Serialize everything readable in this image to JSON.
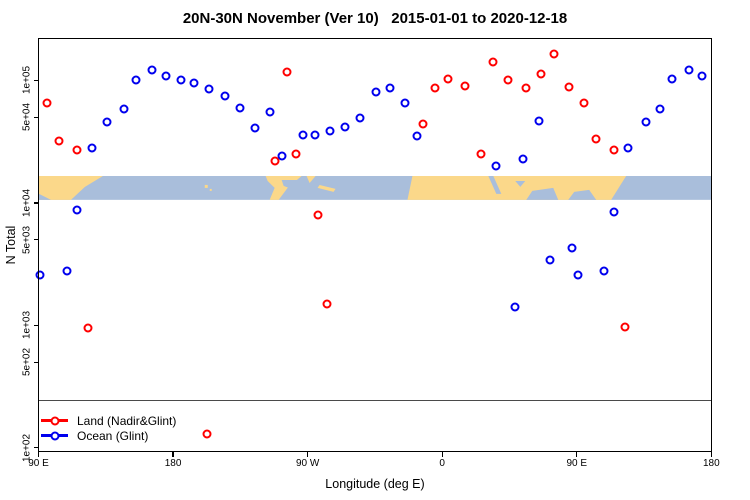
{
  "page": {
    "background": "#FFFFFF"
  },
  "chart_data": {
    "type": "scatter",
    "title": "20N-30N November (Ver 10)   2015-01-01 to 2020-12-18",
    "xlabel": "Longitude (deg E)",
    "ylabel": "N Total",
    "grid": false,
    "legend_position": "bottom-left",
    "x_axis": {
      "range": [
        90,
        540
      ],
      "ticks": [
        {
          "lon": 90,
          "label": "90 E"
        },
        {
          "lon": 180,
          "label": "180"
        },
        {
          "lon": 270,
          "label": "90 W"
        },
        {
          "lon": 360,
          "label": "0"
        },
        {
          "lon": 450,
          "label": "90 E"
        },
        {
          "lon": 540,
          "label": "180"
        }
      ]
    },
    "y_axis": {
      "scale": "log",
      "range": [
        93,
        220000
      ],
      "ticks": [
        {
          "v": 100000,
          "label": "1e+05"
        },
        {
          "v": 50000,
          "label": "5e+04"
        },
        {
          "v": 10000,
          "label": "1e+04"
        },
        {
          "v": 5000,
          "label": "5e+03"
        },
        {
          "v": 1000,
          "label": "1e+03"
        },
        {
          "v": 500,
          "label": "5e+02"
        },
        {
          "v": 100,
          "label": "1e+02"
        }
      ]
    },
    "reference_line": {
      "value": 245,
      "color": "#4a4a4a"
    },
    "map_band": {
      "top_value": 16600,
      "bottom_value": 10600,
      "land_color": "#FBD88A",
      "ocean_color": "#A9BEDB"
    },
    "series": [
      {
        "name": "Land (Nadir&Glint)",
        "color": "#FF0000",
        "points": [
          [
            96,
            66000
          ],
          [
            104,
            32000
          ],
          [
            116,
            27000
          ],
          [
            256,
            117000
          ],
          [
            248,
            22000
          ],
          [
            262,
            25000
          ],
          [
            347,
            44000
          ],
          [
            355,
            87000
          ],
          [
            364,
            102000
          ],
          [
            375,
            90000
          ],
          [
            394,
            141000
          ],
          [
            386,
            25000
          ],
          [
            404,
            100000
          ],
          [
            416,
            87000
          ],
          [
            426,
            112000
          ],
          [
            435,
            165000
          ],
          [
            445,
            88000
          ],
          [
            455,
            66000
          ],
          [
            463,
            33000
          ],
          [
            475,
            27000
          ],
          [
            482,
            970
          ],
          [
            123,
            960
          ],
          [
            277,
            7900
          ],
          [
            283,
            1500
          ],
          [
            203,
            130
          ]
        ]
      },
      {
        "name": "Ocean (Glint)",
        "color": "#0000EE",
        "points": [
          [
            126,
            28000
          ],
          [
            136,
            46000
          ],
          [
            147,
            58000
          ],
          [
            155,
            100000
          ],
          [
            166,
            121000
          ],
          [
            175,
            108000
          ],
          [
            185,
            100000
          ],
          [
            194,
            96000
          ],
          [
            204,
            85000
          ],
          [
            215,
            74000
          ],
          [
            225,
            60000
          ],
          [
            235,
            41000
          ],
          [
            245,
            55000
          ],
          [
            253,
            24000
          ],
          [
            267,
            36000
          ],
          [
            275,
            36000
          ],
          [
            285,
            39000
          ],
          [
            295,
            42000
          ],
          [
            305,
            49000
          ],
          [
            316,
            81000
          ],
          [
            325,
            86000
          ],
          [
            335,
            66000
          ],
          [
            343,
            35000
          ],
          [
            396,
            20000
          ],
          [
            414,
            23000
          ],
          [
            425,
            47000
          ],
          [
            484,
            28000
          ],
          [
            496,
            46000
          ],
          [
            506,
            58000
          ],
          [
            514,
            103000
          ],
          [
            525,
            121000
          ],
          [
            534,
            108000
          ],
          [
            116,
            8700
          ],
          [
            109,
            2800
          ],
          [
            91,
            2600
          ],
          [
            432,
            3400
          ],
          [
            409,
            1400
          ],
          [
            447,
            4300
          ],
          [
            475,
            8500
          ],
          [
            451,
            2600
          ],
          [
            468,
            2800
          ]
        ]
      }
    ]
  }
}
